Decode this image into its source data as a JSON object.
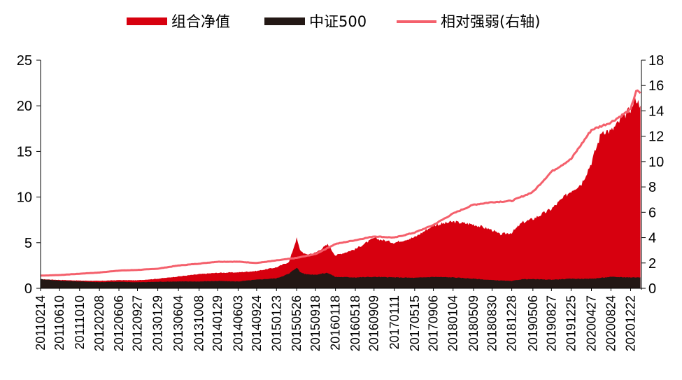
{
  "chart_data": {
    "type": "area",
    "legend": {
      "placement": "top-center",
      "items": [
        {
          "label": "组合净值",
          "kind": "area",
          "color": "#D7000F"
        },
        {
          "label": "中证500",
          "kind": "area",
          "color": "#231815"
        },
        {
          "label": "相对强弱(右轴)",
          "kind": "line",
          "color": "#F4606C"
        }
      ]
    },
    "y_left": {
      "min": 0,
      "max": 25,
      "ticks": [
        "0",
        "5",
        "10",
        "15",
        "20",
        "25"
      ]
    },
    "y_right": {
      "min": 0,
      "max": 18,
      "ticks": [
        "0",
        "2",
        "4",
        "6",
        "8",
        "10",
        "12",
        "14",
        "16",
        "18"
      ]
    },
    "x_tick_labels": [
      "20110214",
      "20110610",
      "20111010",
      "20120208",
      "20120606",
      "20120927",
      "20130129",
      "20130604",
      "20131008",
      "20140129",
      "20140603",
      "20140924",
      "20150123",
      "20150526",
      "20150918",
      "20160118",
      "20160518",
      "20160909",
      "20170111",
      "20170515",
      "20170906",
      "20180104",
      "20180509",
      "20180830",
      "20181228",
      "20190506",
      "20190827",
      "20191225",
      "20200427",
      "20200824",
      "20201222"
    ],
    "series": [
      {
        "name": "组合净值",
        "axis": "left",
        "color": "#D7000F",
        "x": [
          "20110214",
          "20110610",
          "20111010",
          "20120208",
          "20120606",
          "20120927",
          "20130129",
          "20130604",
          "20131008",
          "20140129",
          "20140603",
          "20140924",
          "20150123",
          "20150410",
          "20150526",
          "20150615",
          "20150720",
          "20150918",
          "20151201",
          "20160118",
          "20160518",
          "20160909",
          "20170111",
          "20170515",
          "20170906",
          "20180104",
          "20180509",
          "20180830",
          "20181015",
          "20181228",
          "20190301",
          "20190506",
          "20190827",
          "20191225",
          "20200227",
          "20200427",
          "20200701",
          "20200824",
          "20201222",
          "20210125",
          "20210220"
        ],
        "values": [
          1.0,
          0.92,
          0.85,
          0.82,
          0.9,
          0.88,
          1.05,
          1.3,
          1.55,
          1.7,
          1.75,
          1.9,
          2.3,
          2.9,
          5.5,
          4.2,
          3.7,
          3.9,
          4.8,
          3.6,
          4.3,
          5.5,
          5.0,
          5.6,
          6.9,
          7.3,
          7.0,
          6.4,
          5.9,
          6.1,
          7.2,
          7.6,
          8.7,
          10.7,
          11.5,
          13.8,
          17.3,
          17.2,
          19.7,
          20.8,
          20.0
        ]
      },
      {
        "name": "中证500",
        "axis": "left",
        "color": "#231815",
        "x": [
          "20110214",
          "20110610",
          "20111010",
          "20120208",
          "20120606",
          "20120927",
          "20130129",
          "20130604",
          "20131008",
          "20140129",
          "20140603",
          "20140924",
          "20150123",
          "20150410",
          "20150526",
          "20150615",
          "20150720",
          "20150918",
          "20151201",
          "20160118",
          "20160518",
          "20160909",
          "20170111",
          "20170515",
          "20170906",
          "20180104",
          "20180509",
          "20180830",
          "20181228",
          "20190301",
          "20190506",
          "20190827",
          "20191225",
          "20200427",
          "20200824",
          "20201222",
          "20210220"
        ],
        "values": [
          1.0,
          0.85,
          0.75,
          0.68,
          0.72,
          0.66,
          0.72,
          0.75,
          0.75,
          0.8,
          0.75,
          0.95,
          1.1,
          1.6,
          2.3,
          1.8,
          1.55,
          1.5,
          1.7,
          1.25,
          1.2,
          1.25,
          1.2,
          1.15,
          1.25,
          1.2,
          1.05,
          0.9,
          0.8,
          1.0,
          1.0,
          0.95,
          1.05,
          1.05,
          1.25,
          1.2,
          1.2
        ]
      },
      {
        "name": "相对强弱(右轴)",
        "axis": "right",
        "color": "#F4606C",
        "x": [
          "20110214",
          "20110610",
          "20111010",
          "20120208",
          "20120606",
          "20120927",
          "20130129",
          "20130604",
          "20131008",
          "20140129",
          "20140603",
          "20140924",
          "20150123",
          "20150526",
          "20150918",
          "20160118",
          "20160518",
          "20160909",
          "20170111",
          "20170515",
          "20170906",
          "20180104",
          "20180509",
          "20180830",
          "20181228",
          "20190506",
          "20190827",
          "20191225",
          "20200427",
          "20200824",
          "20201222",
          "20210125",
          "20210220"
        ],
        "values": [
          1.0,
          1.05,
          1.15,
          1.25,
          1.4,
          1.45,
          1.55,
          1.8,
          1.95,
          2.1,
          2.1,
          2.0,
          2.2,
          2.4,
          2.7,
          3.5,
          3.8,
          4.1,
          4.0,
          4.4,
          5.0,
          5.9,
          6.6,
          6.8,
          6.9,
          7.6,
          9.2,
          10.2,
          12.5,
          13.1,
          14.1,
          15.6,
          15.4
        ]
      }
    ]
  }
}
